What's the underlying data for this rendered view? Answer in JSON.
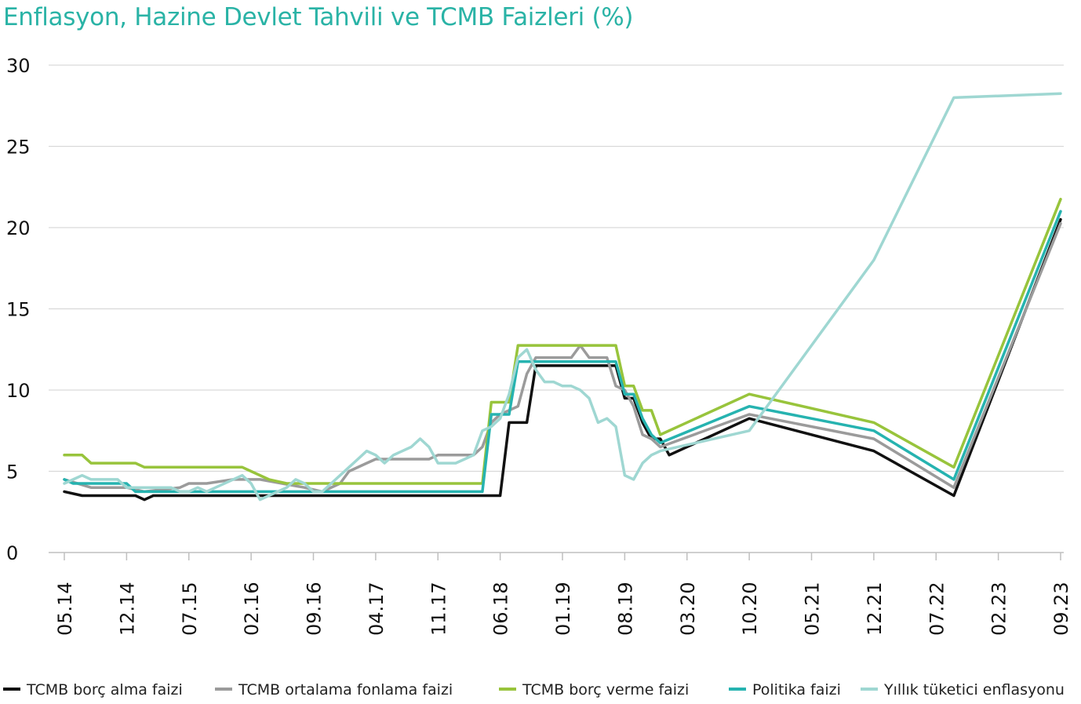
{
  "chart_data": {
    "type": "line",
    "title": "Enflasyon, Hazine Devlet Tahvili ve TCMB Faizleri (%)",
    "xlabel": "",
    "ylabel": "",
    "ylim": [
      0,
      30
    ],
    "yticks": [
      "0",
      "5",
      "10",
      "15",
      "20",
      "25",
      "30"
    ],
    "grid": "horizontal",
    "legend_position": "bottom",
    "x_tick_labels": [
      "05.14",
      "12.14",
      "07.15",
      "02.16",
      "09.16",
      "04.17",
      "11.17",
      "06.18",
      "01.19",
      "08.19",
      "03.20",
      "10.20",
      "05.21",
      "12.21",
      "07.22",
      "02.23",
      "09.23"
    ],
    "x_start": "05.14",
    "x_end": "09.23",
    "series": [
      {
        "name": "TCMB borç alma faizi",
        "color": "#111111",
        "points": [
          [
            "05.14",
            3.75
          ],
          [
            "07.14",
            3.5
          ],
          [
            "01.15",
            3.5
          ],
          [
            "02.15",
            3.25
          ],
          [
            "03.15",
            3.5
          ],
          [
            "06.18",
            3.5
          ],
          [
            "07.18",
            8.0
          ],
          [
            "09.18",
            8.0
          ],
          [
            "10.18",
            11.5
          ],
          [
            "07.19",
            11.5
          ],
          [
            "08.19",
            9.5
          ],
          [
            "09.19",
            9.5
          ],
          [
            "10.19",
            8.0
          ],
          [
            "11.19",
            7.0
          ],
          [
            "12.19",
            7.0
          ],
          [
            "01.20",
            6.0
          ],
          [
            "10.20",
            8.25
          ],
          [
            "12.21",
            6.25
          ],
          [
            "09.22",
            3.5
          ],
          [
            "09.23",
            20.5
          ]
        ]
      },
      {
        "name": "TCMB ortalama fonlama faizi",
        "color": "#9b9b9b",
        "points": [
          [
            "05.14",
            4.5
          ],
          [
            "08.14",
            4.0
          ],
          [
            "12.14",
            4.0
          ],
          [
            "02.15",
            3.75
          ],
          [
            "06.15",
            4.0
          ],
          [
            "07.15",
            4.25
          ],
          [
            "09.15",
            4.25
          ],
          [
            "12.15",
            4.5
          ],
          [
            "03.16",
            4.5
          ],
          [
            "08.16",
            4.0
          ],
          [
            "10.16",
            3.75
          ],
          [
            "12.16",
            4.25
          ],
          [
            "01.17",
            5.0
          ],
          [
            "03.17",
            5.5
          ],
          [
            "04.17",
            5.75
          ],
          [
            "10.17",
            5.75
          ],
          [
            "11.17",
            6.0
          ],
          [
            "03.18",
            6.0
          ],
          [
            "04.18",
            6.5
          ],
          [
            "05.18",
            8.0
          ],
          [
            "06.18",
            8.5
          ],
          [
            "08.18",
            9.0
          ],
          [
            "09.18",
            11.0
          ],
          [
            "10.18",
            12.0
          ],
          [
            "02.19",
            12.0
          ],
          [
            "03.19",
            12.75
          ],
          [
            "04.19",
            12.0
          ],
          [
            "06.19",
            12.0
          ],
          [
            "07.19",
            10.25
          ],
          [
            "08.19",
            10.0
          ],
          [
            "09.19",
            9.0
          ],
          [
            "10.19",
            7.25
          ],
          [
            "11.19",
            7.0
          ],
          [
            "12.19",
            6.5
          ],
          [
            "10.20",
            8.5
          ],
          [
            "12.21",
            7.0
          ],
          [
            "09.22",
            4.0
          ],
          [
            "09.23",
            20.25
          ]
        ]
      },
      {
        "name": "TCMB borç verme faizi",
        "color": "#98c43c",
        "points": [
          [
            "05.14",
            6.0
          ],
          [
            "07.14",
            6.0
          ],
          [
            "08.14",
            5.5
          ],
          [
            "01.15",
            5.5
          ],
          [
            "02.15",
            5.25
          ],
          [
            "01.16",
            5.25
          ],
          [
            "02.16",
            5.0
          ],
          [
            "04.16",
            4.5
          ],
          [
            "06.16",
            4.25
          ],
          [
            "08.16",
            4.25
          ],
          [
            "10.16",
            4.25
          ],
          [
            "04.18",
            4.25
          ],
          [
            "05.18",
            9.25
          ],
          [
            "07.18",
            9.25
          ],
          [
            "08.18",
            12.75
          ],
          [
            "07.19",
            12.75
          ],
          [
            "08.19",
            10.25
          ],
          [
            "09.19",
            10.25
          ],
          [
            "10.19",
            8.75
          ],
          [
            "11.19",
            8.75
          ],
          [
            "12.19",
            7.25
          ],
          [
            "10.20",
            9.75
          ],
          [
            "12.21",
            8.0
          ],
          [
            "09.22",
            5.25
          ],
          [
            "09.23",
            21.75
          ]
        ]
      },
      {
        "name": "Politika faizi",
        "color": "#26b3b0",
        "points": [
          [
            "05.14",
            4.5
          ],
          [
            "06.14",
            4.25
          ],
          [
            "12.14",
            4.25
          ],
          [
            "01.15",
            3.75
          ],
          [
            "04.18",
            3.75
          ],
          [
            "05.18",
            8.5
          ],
          [
            "07.18",
            8.5
          ],
          [
            "08.18",
            11.75
          ],
          [
            "07.19",
            11.75
          ],
          [
            "08.19",
            9.75
          ],
          [
            "09.19",
            9.75
          ],
          [
            "10.19",
            8.25
          ],
          [
            "11.19",
            7.25
          ],
          [
            "12.19",
            6.75
          ],
          [
            "10.20",
            9.0
          ],
          [
            "12.21",
            7.5
          ],
          [
            "09.22",
            4.5
          ],
          [
            "09.23",
            21.0
          ]
        ]
      },
      {
        "name": "Yıllık tüketici enflasyonu",
        "color": "#9fd7d2",
        "points": [
          [
            "05.14",
            4.25
          ],
          [
            "06.14",
            4.5
          ],
          [
            "07.14",
            4.75
          ],
          [
            "08.14",
            4.5
          ],
          [
            "09.14",
            4.5
          ],
          [
            "11.14",
            4.5
          ],
          [
            "12.14",
            4.0
          ],
          [
            "02.15",
            4.0
          ],
          [
            "05.15",
            4.0
          ],
          [
            "06.15",
            3.75
          ],
          [
            "07.15",
            3.75
          ],
          [
            "08.15",
            4.0
          ],
          [
            "09.15",
            3.75
          ],
          [
            "10.15",
            4.0
          ],
          [
            "01.16",
            4.75
          ],
          [
            "02.16",
            4.25
          ],
          [
            "03.16",
            3.25
          ],
          [
            "04.16",
            3.5
          ],
          [
            "06.16",
            4.0
          ],
          [
            "07.16",
            4.5
          ],
          [
            "08.16",
            4.25
          ],
          [
            "09.16",
            3.75
          ],
          [
            "10.16",
            3.75
          ],
          [
            "11.16",
            4.25
          ],
          [
            "12.16",
            4.75
          ],
          [
            "01.17",
            5.25
          ],
          [
            "02.17",
            5.75
          ],
          [
            "03.17",
            6.25
          ],
          [
            "04.17",
            6.0
          ],
          [
            "05.17",
            5.5
          ],
          [
            "06.17",
            6.0
          ],
          [
            "08.17",
            6.5
          ],
          [
            "09.17",
            7.0
          ],
          [
            "10.17",
            6.5
          ],
          [
            "11.17",
            5.5
          ],
          [
            "01.18",
            5.5
          ],
          [
            "02.18",
            5.75
          ],
          [
            "03.18",
            6.0
          ],
          [
            "04.18",
            7.5
          ],
          [
            "05.18",
            7.75
          ],
          [
            "06.18",
            8.25
          ],
          [
            "07.18",
            9.75
          ],
          [
            "08.18",
            12.0
          ],
          [
            "09.18",
            12.5
          ],
          [
            "10.18",
            11.25
          ],
          [
            "11.18",
            10.5
          ],
          [
            "12.18",
            10.5
          ],
          [
            "01.19",
            10.25
          ],
          [
            "02.19",
            10.25
          ],
          [
            "03.19",
            10.0
          ],
          [
            "04.19",
            9.5
          ],
          [
            "05.19",
            8.0
          ],
          [
            "06.19",
            8.25
          ],
          [
            "07.19",
            7.75
          ],
          [
            "08.19",
            4.75
          ],
          [
            "09.19",
            4.5
          ],
          [
            "10.19",
            5.5
          ],
          [
            "11.19",
            6.0
          ],
          [
            "12.19",
            6.25
          ],
          [
            "10.20",
            7.5
          ],
          [
            "12.21",
            18.0
          ],
          [
            "09.22",
            28.0
          ],
          [
            "09.23",
            28.25
          ]
        ]
      }
    ]
  }
}
